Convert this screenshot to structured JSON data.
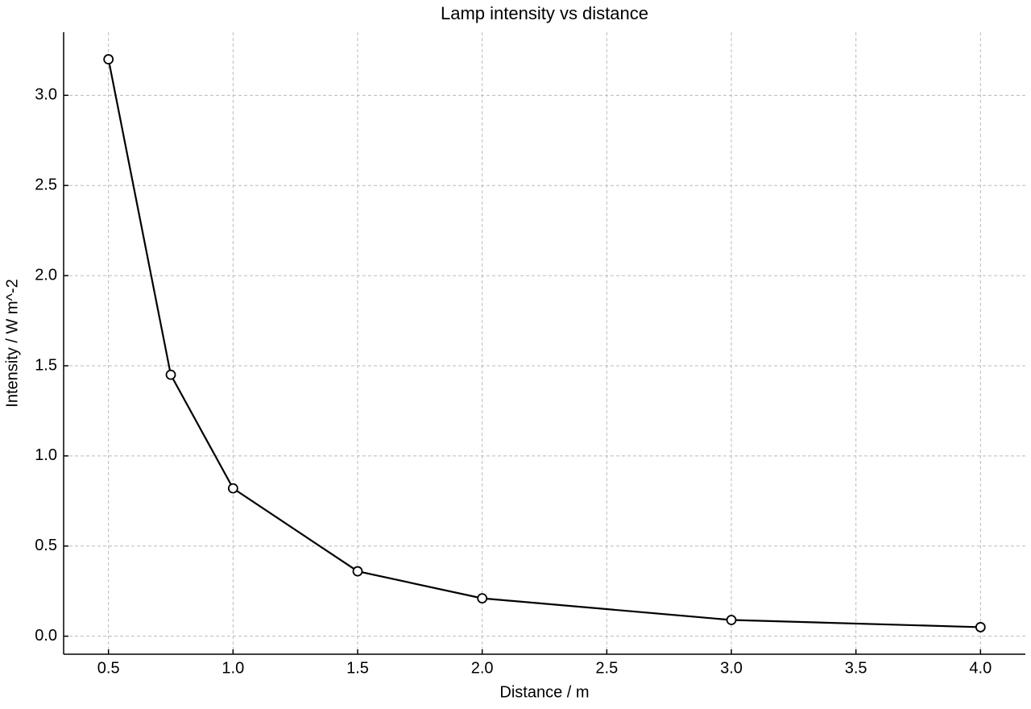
{
  "chart_data": {
    "type": "line",
    "title": "Lamp intensity vs distance",
    "x_label": "Distance / m",
    "y_label": "Intensity / W m^-2",
    "x": [
      0.5,
      0.75,
      1.0,
      1.5,
      2.0,
      3.0,
      4.0
    ],
    "series": [
      {
        "name": "Intensity",
        "color": "#000000",
        "values": [
          3.2,
          1.45,
          0.82,
          0.36,
          0.21,
          0.09,
          0.05
        ]
      }
    ],
    "xlim": [
      0.32,
      4.18
    ],
    "xticks": [
      0.5,
      {
        "value": 1,
        "label": "1.0"
      },
      1.5,
      {
        "value": 2,
        "label": "2.0"
      },
      2.5,
      {
        "value": 3,
        "label": "3.0"
      },
      3.5,
      {
        "value": 4,
        "label": "4.0"
      }
    ],
    "ylim": [
      -0.1,
      3.35
    ],
    "yticks": [
      {
        "value": 0,
        "label": "0.0"
      },
      0.5,
      {
        "value": 1,
        "label": "1.0"
      },
      1.5,
      {
        "value": 2,
        "label": "2.0"
      },
      2.5,
      {
        "value": 3,
        "label": "3.0"
      }
    ],
    "grid": true
  }
}
